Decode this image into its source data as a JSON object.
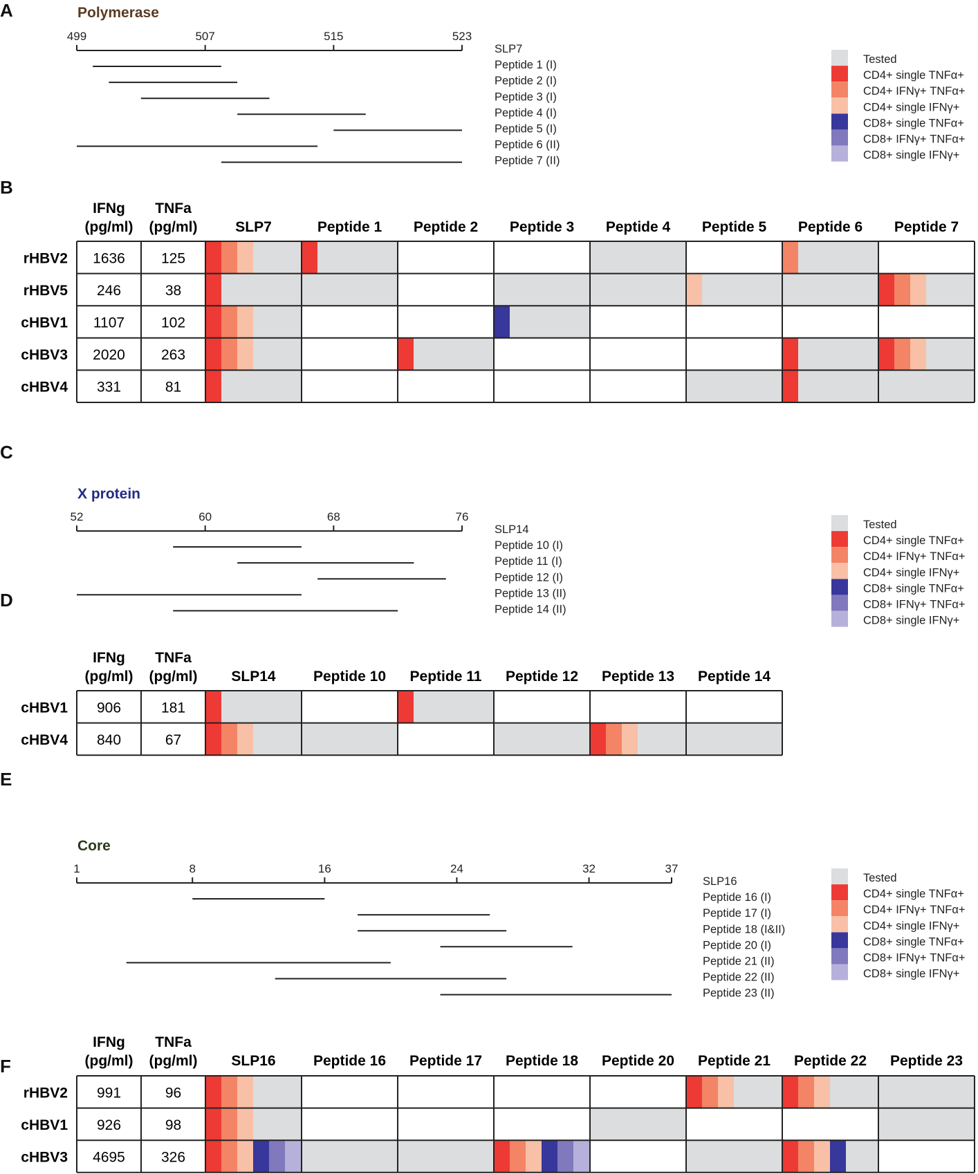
{
  "colors": {
    "tested": "#dcdddf",
    "cd4_single_tnfa": "#ee3a35",
    "cd4_ifng_tnfa": "#f38466",
    "cd4_single_ifng": "#f8c0a6",
    "cd8_single_tnfa": "#38379b",
    "cd8_ifng_tnfa": "#8079bd",
    "cd8_single_ifng": "#b6b1da",
    "title_polymerase": "#5a3a22",
    "title_x": "#232b84",
    "title_core": "#2d3a1d"
  },
  "legend_order": [
    "tested",
    "cd4_single_tnfa",
    "cd4_ifng_tnfa",
    "cd4_single_ifng",
    "cd8_single_tnfa",
    "cd8_ifng_tnfa",
    "cd8_single_ifng"
  ],
  "legend": [
    {
      "key": "tested",
      "label": "Tested"
    },
    {
      "key": "cd4_single_tnfa",
      "label": "CD4+ single TNFα+"
    },
    {
      "key": "cd4_ifng_tnfa",
      "label": "CD4+ IFNγ+ TNFα+"
    },
    {
      "key": "cd4_single_ifng",
      "label": "CD4+ single IFNγ+"
    },
    {
      "key": "cd8_single_tnfa",
      "label": "CD8+ single TNFα+"
    },
    {
      "key": "cd8_ifng_tnfa",
      "label": "CD8+ IFNγ+ TNFα+"
    },
    {
      "key": "cd8_single_ifng",
      "label": "CD8+ single IFNγ+"
    }
  ],
  "chart_data": [
    {
      "type": "peptide_map",
      "panel": "A",
      "title": "Polymerase",
      "title_color_key": "title_polymerase",
      "axis": {
        "min": 499,
        "max": 523,
        "ticks": [
          499,
          507,
          515,
          523
        ]
      },
      "header_label": "SLP7",
      "peptides": [
        {
          "label": "Peptide 1 (I)",
          "start": 500,
          "end": 508
        },
        {
          "label": "Peptide 2 (I)",
          "start": 501,
          "end": 509
        },
        {
          "label": "Peptide 3 (I)",
          "start": 503,
          "end": 511
        },
        {
          "label": "Peptide 4 (I)",
          "start": 509,
          "end": 517
        },
        {
          "label": "Peptide 5 (I)",
          "start": 515,
          "end": 523
        },
        {
          "label": "Peptide 6 (II)",
          "start": 499,
          "end": 514
        },
        {
          "label": "Peptide 7 (II)",
          "start": 508,
          "end": 523
        }
      ]
    },
    {
      "type": "heatmap_table",
      "panel": "B",
      "headers": {
        "ifng": "IFNg",
        "ifng_unit": "(pg/ml)",
        "tnfa": "TNFa",
        "tnfa_unit": "(pg/ml)"
      },
      "columns": [
        "SLP7",
        "Peptide 1",
        "Peptide 2",
        "Peptide 3",
        "Peptide 4",
        "Peptide 5",
        "Peptide 6",
        "Peptide 7"
      ],
      "rows": [
        {
          "name": "rHBV2",
          "ifng": "1636",
          "tnfa": "125",
          "cells": [
            {
              "tested": true,
              "marks": [
                "cd4_single_tnfa",
                "cd4_ifng_tnfa",
                "cd4_single_ifng"
              ]
            },
            {
              "tested": true,
              "marks": [
                "cd4_single_tnfa"
              ]
            },
            {
              "tested": false,
              "marks": []
            },
            {
              "tested": false,
              "marks": []
            },
            {
              "tested": true,
              "marks": []
            },
            {
              "tested": false,
              "marks": []
            },
            {
              "tested": true,
              "marks": [
                "cd4_ifng_tnfa"
              ]
            },
            {
              "tested": false,
              "marks": []
            }
          ]
        },
        {
          "name": "rHBV5",
          "ifng": "246",
          "tnfa": "38",
          "cells": [
            {
              "tested": true,
              "marks": [
                "cd4_single_tnfa"
              ]
            },
            {
              "tested": true,
              "marks": []
            },
            {
              "tested": false,
              "marks": []
            },
            {
              "tested": true,
              "marks": []
            },
            {
              "tested": true,
              "marks": []
            },
            {
              "tested": true,
              "marks": [
                "cd4_single_ifng"
              ]
            },
            {
              "tested": true,
              "marks": []
            },
            {
              "tested": true,
              "marks": [
                "cd4_single_tnfa",
                "cd4_ifng_tnfa",
                "cd4_single_ifng"
              ]
            }
          ]
        },
        {
          "name": "cHBV1",
          "ifng": "1107",
          "tnfa": "102",
          "cells": [
            {
              "tested": true,
              "marks": [
                "cd4_single_tnfa",
                "cd4_ifng_tnfa",
                "cd4_single_ifng"
              ]
            },
            {
              "tested": false,
              "marks": []
            },
            {
              "tested": false,
              "marks": []
            },
            {
              "tested": true,
              "marks": [
                "cd8_single_tnfa"
              ]
            },
            {
              "tested": false,
              "marks": []
            },
            {
              "tested": false,
              "marks": []
            },
            {
              "tested": false,
              "marks": []
            },
            {
              "tested": false,
              "marks": []
            }
          ]
        },
        {
          "name": "cHBV3",
          "ifng": "2020",
          "tnfa": "263",
          "cells": [
            {
              "tested": true,
              "marks": [
                "cd4_single_tnfa",
                "cd4_ifng_tnfa",
                "cd4_single_ifng"
              ]
            },
            {
              "tested": false,
              "marks": []
            },
            {
              "tested": true,
              "marks": [
                "cd4_single_tnfa"
              ]
            },
            {
              "tested": false,
              "marks": []
            },
            {
              "tested": false,
              "marks": []
            },
            {
              "tested": false,
              "marks": []
            },
            {
              "tested": true,
              "marks": [
                "cd4_single_tnfa"
              ]
            },
            {
              "tested": true,
              "marks": [
                "cd4_single_tnfa",
                "cd4_ifng_tnfa",
                "cd4_single_ifng"
              ]
            }
          ]
        },
        {
          "name": "cHBV4",
          "ifng": "331",
          "tnfa": "81",
          "cells": [
            {
              "tested": true,
              "marks": [
                "cd4_single_tnfa"
              ]
            },
            {
              "tested": false,
              "marks": []
            },
            {
              "tested": false,
              "marks": []
            },
            {
              "tested": false,
              "marks": []
            },
            {
              "tested": false,
              "marks": []
            },
            {
              "tested": true,
              "marks": []
            },
            {
              "tested": true,
              "marks": [
                "cd4_single_tnfa"
              ]
            },
            {
              "tested": true,
              "marks": []
            }
          ]
        }
      ]
    },
    {
      "type": "peptide_map",
      "panel": "C",
      "title": "X protein",
      "title_color_key": "title_x",
      "axis": {
        "min": 52,
        "max": 76,
        "ticks": [
          52,
          60,
          68,
          76
        ]
      },
      "header_label": "SLP14",
      "peptides": [
        {
          "label": "Peptide 10 (I)",
          "start": 58,
          "end": 66
        },
        {
          "label": "Peptide 11 (I)",
          "start": 62,
          "end": 73
        },
        {
          "label": "Peptide 12 (I)",
          "start": 67,
          "end": 75
        },
        {
          "label": "Peptide 13 (II)",
          "start": 52,
          "end": 66
        },
        {
          "label": "Peptide 14 (II)",
          "start": 58,
          "end": 72
        }
      ]
    },
    {
      "type": "heatmap_table",
      "panel": "D",
      "headers": {
        "ifng": "IFNg",
        "ifng_unit": "(pg/ml)",
        "tnfa": "TNFa",
        "tnfa_unit": "(pg/ml)"
      },
      "columns": [
        "SLP14",
        "Peptide 10",
        "Peptide 11",
        "Peptide 12",
        "Peptide 13",
        "Peptide 14"
      ],
      "rows": [
        {
          "name": "cHBV1",
          "ifng": "906",
          "tnfa": "181",
          "cells": [
            {
              "tested": true,
              "marks": [
                "cd4_single_tnfa"
              ]
            },
            {
              "tested": false,
              "marks": []
            },
            {
              "tested": true,
              "marks": [
                "cd4_single_tnfa"
              ]
            },
            {
              "tested": false,
              "marks": []
            },
            {
              "tested": false,
              "marks": []
            },
            {
              "tested": false,
              "marks": []
            }
          ]
        },
        {
          "name": "cHBV4",
          "ifng": "840",
          "tnfa": "67",
          "cells": [
            {
              "tested": true,
              "marks": [
                "cd4_single_tnfa",
                "cd4_ifng_tnfa",
                "cd4_single_ifng"
              ]
            },
            {
              "tested": true,
              "marks": []
            },
            {
              "tested": false,
              "marks": []
            },
            {
              "tested": true,
              "marks": []
            },
            {
              "tested": true,
              "marks": [
                "cd4_single_tnfa",
                "cd4_ifng_tnfa",
                "cd4_single_ifng"
              ]
            },
            {
              "tested": true,
              "marks": []
            }
          ]
        }
      ]
    },
    {
      "type": "peptide_map",
      "panel": "E",
      "title": "Core",
      "title_color_key": "title_core",
      "axis": {
        "min": 1,
        "max": 37,
        "ticks": [
          1,
          8,
          16,
          24,
          32,
          37
        ]
      },
      "header_label": "SLP16",
      "peptides": [
        {
          "label": "Peptide 16 (I)",
          "start": 8,
          "end": 16
        },
        {
          "label": "Peptide 17 (I)",
          "start": 18,
          "end": 26
        },
        {
          "label": "Peptide 18 (I&II)",
          "start": 18,
          "end": 27
        },
        {
          "label": "Peptide 20 (I)",
          "start": 23,
          "end": 31
        },
        {
          "label": "Peptide 21 (II)",
          "start": 4,
          "end": 20
        },
        {
          "label": "Peptide 22 (II)",
          "start": 13,
          "end": 27
        },
        {
          "label": "Peptide 23 (II)",
          "start": 23,
          "end": 37
        }
      ]
    },
    {
      "type": "heatmap_table",
      "panel": "F",
      "headers": {
        "ifng": "IFNg",
        "ifng_unit": "(pg/ml)",
        "tnfa": "TNFa",
        "tnfa_unit": "(pg/ml)"
      },
      "columns": [
        "SLP16",
        "Peptide 16",
        "Peptide 17",
        "Peptide 18",
        "Peptide 20",
        "Peptide 21",
        "Peptide 22",
        "Peptide 23"
      ],
      "rows": [
        {
          "name": "rHBV2",
          "ifng": "991",
          "tnfa": "96",
          "cells": [
            {
              "tested": true,
              "marks": [
                "cd4_single_tnfa",
                "cd4_ifng_tnfa",
                "cd4_single_ifng"
              ]
            },
            {
              "tested": false,
              "marks": []
            },
            {
              "tested": false,
              "marks": []
            },
            {
              "tested": false,
              "marks": []
            },
            {
              "tested": false,
              "marks": []
            },
            {
              "tested": true,
              "marks": [
                "cd4_single_tnfa",
                "cd4_ifng_tnfa",
                "cd4_single_ifng"
              ]
            },
            {
              "tested": true,
              "marks": [
                "cd4_single_tnfa",
                "cd4_ifng_tnfa",
                "cd4_single_ifng"
              ]
            },
            {
              "tested": true,
              "marks": []
            }
          ]
        },
        {
          "name": "cHBV1",
          "ifng": "926",
          "tnfa": "98",
          "cells": [
            {
              "tested": true,
              "marks": [
                "cd4_single_tnfa",
                "cd4_ifng_tnfa",
                "cd4_single_ifng"
              ]
            },
            {
              "tested": false,
              "marks": []
            },
            {
              "tested": false,
              "marks": []
            },
            {
              "tested": false,
              "marks": []
            },
            {
              "tested": true,
              "marks": []
            },
            {
              "tested": false,
              "marks": []
            },
            {
              "tested": false,
              "marks": []
            },
            {
              "tested": true,
              "marks": []
            }
          ]
        },
        {
          "name": "cHBV3",
          "ifng": "4695",
          "tnfa": "326",
          "cells": [
            {
              "tested": true,
              "marks": [
                "cd4_single_tnfa",
                "cd4_ifng_tnfa",
                "cd4_single_ifng",
                "cd8_single_tnfa",
                "cd8_ifng_tnfa",
                "cd8_single_ifng"
              ]
            },
            {
              "tested": true,
              "marks": []
            },
            {
              "tested": true,
              "marks": []
            },
            {
              "tested": true,
              "marks": [
                "cd4_single_tnfa",
                "cd4_ifng_tnfa",
                "cd4_single_ifng",
                "cd8_single_tnfa",
                "cd8_ifng_tnfa",
                "cd8_single_ifng"
              ]
            },
            {
              "tested": false,
              "marks": []
            },
            {
              "tested": true,
              "marks": []
            },
            {
              "tested": true,
              "marks": [
                "cd4_single_tnfa",
                "cd4_ifng_tnfa",
                "cd4_single_ifng",
                "cd8_single_tnfa"
              ]
            },
            {
              "tested": false,
              "marks": []
            }
          ]
        }
      ]
    }
  ]
}
